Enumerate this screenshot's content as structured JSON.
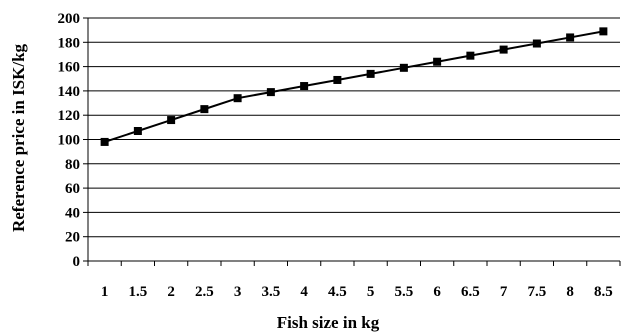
{
  "chart_data": {
    "type": "line",
    "title": "",
    "xlabel": "Fish size in kg",
    "ylabel": "Reference price in ISK/kg",
    "x": [
      "1",
      "1.5",
      "2",
      "2.5",
      "3",
      "3.5",
      "4",
      "4.5",
      "5",
      "5.5",
      "6",
      "6.5",
      "7",
      "7.5",
      "8",
      "8.5"
    ],
    "series": [
      {
        "values": [
          98,
          107,
          116,
          125,
          134,
          139,
          144,
          149,
          154,
          159,
          164,
          169,
          174,
          179,
          184,
          189
        ]
      }
    ],
    "ylim": [
      0,
      200
    ],
    "yticks": [
      "0",
      "20",
      "40",
      "60",
      "80",
      "100",
      "120",
      "140",
      "160",
      "180",
      "200"
    ],
    "grid": true,
    "legend": "none",
    "line_color": "#000000",
    "marker": "square"
  }
}
